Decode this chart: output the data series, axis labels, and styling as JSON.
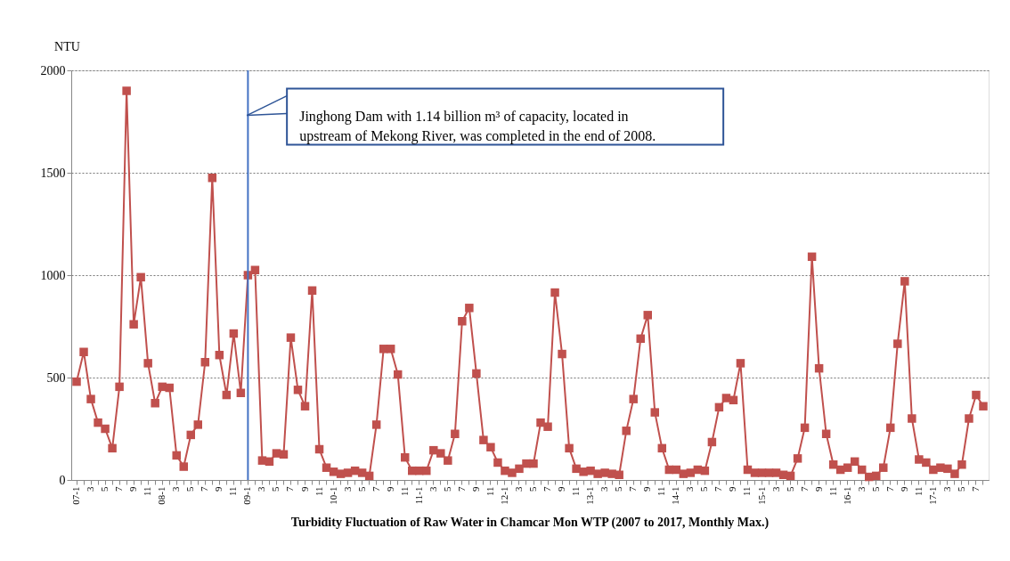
{
  "chart_data": {
    "type": "line",
    "title": "Turbidity Fluctuation of Raw Water in Chamcar Mon WTP (2007 to 2017, Monthly Max.)",
    "ylabel": "NTU",
    "categories": [
      "07-1",
      null,
      "3",
      null,
      "5",
      null,
      "7",
      null,
      "9",
      null,
      "11",
      null,
      "08-1",
      null,
      "3",
      null,
      "5",
      null,
      "7",
      null,
      "9",
      null,
      "11",
      null,
      "09-1",
      null,
      "3",
      null,
      "5",
      null,
      "7",
      null,
      "9",
      null,
      "11",
      null,
      "10-1",
      null,
      "3",
      null,
      "5",
      null,
      "7",
      null,
      "9",
      null,
      "11",
      null,
      "11-1",
      null,
      "3",
      null,
      "5",
      null,
      "7",
      null,
      "9",
      null,
      "11",
      null,
      "12-1",
      null,
      "3",
      null,
      "5",
      null,
      "7",
      null,
      "9",
      null,
      "11",
      null,
      "13-1",
      null,
      "3",
      null,
      "5",
      null,
      "7",
      null,
      "9",
      null,
      "11",
      null,
      "14-1",
      null,
      "3",
      null,
      "5",
      null,
      "7",
      null,
      "9",
      null,
      "11",
      null,
      "15-1",
      null,
      "3",
      null,
      "5",
      null,
      "7",
      null,
      "9",
      null,
      "11",
      null,
      "16-1",
      null,
      "3",
      null,
      "5",
      null,
      "7",
      null,
      "9",
      null,
      "11",
      null,
      "17-1",
      null,
      "3",
      null,
      "5",
      null,
      "7",
      null
    ],
    "series": [
      {
        "color": "#c0504d",
        "values": [
          480,
          625,
          395,
          280,
          250,
          155,
          455,
          1900,
          760,
          990,
          570,
          375,
          455,
          450,
          120,
          65,
          220,
          270,
          575,
          1475,
          610,
          415,
          715,
          425,
          1000,
          1025,
          95,
          90,
          130,
          125,
          695,
          440,
          360,
          925,
          150,
          60,
          40,
          30,
          35,
          45,
          35,
          20,
          270,
          640,
          640,
          515,
          110,
          45,
          45,
          45,
          145,
          130,
          95,
          225,
          775,
          840,
          520,
          195,
          160,
          85,
          45,
          35,
          55,
          80,
          80,
          280,
          260,
          915,
          615,
          155,
          55,
          40,
          45,
          30,
          35,
          30,
          25,
          240,
          395,
          690,
          805,
          330,
          155,
          50,
          50,
          30,
          35,
          50,
          45,
          185,
          355,
          400,
          390,
          570,
          50,
          35,
          35,
          35,
          35,
          25,
          20,
          105,
          255,
          1090,
          545,
          225,
          75,
          50,
          60,
          90,
          50,
          15,
          20,
          60,
          255,
          665,
          970,
          300,
          100,
          85,
          50,
          60,
          55,
          30,
          75,
          300,
          415,
          360
        ]
      }
    ],
    "ylim": [
      0,
      2000
    ],
    "yticks": [
      0,
      500,
      1000,
      1500,
      2000
    ],
    "grid": "y",
    "marker": "square",
    "line_style": "solid",
    "ref_lines": [
      {
        "axis": "x",
        "value": "09-1",
        "color": "#4472c4"
      }
    ],
    "annotations": [
      {
        "text": "Jinghong Dam with 1.14 billion m³ of capacity, located in\nupstream of Mekong River, was completed in the end of 2008.",
        "x": "09-1",
        "y": 1780
      }
    ]
  }
}
